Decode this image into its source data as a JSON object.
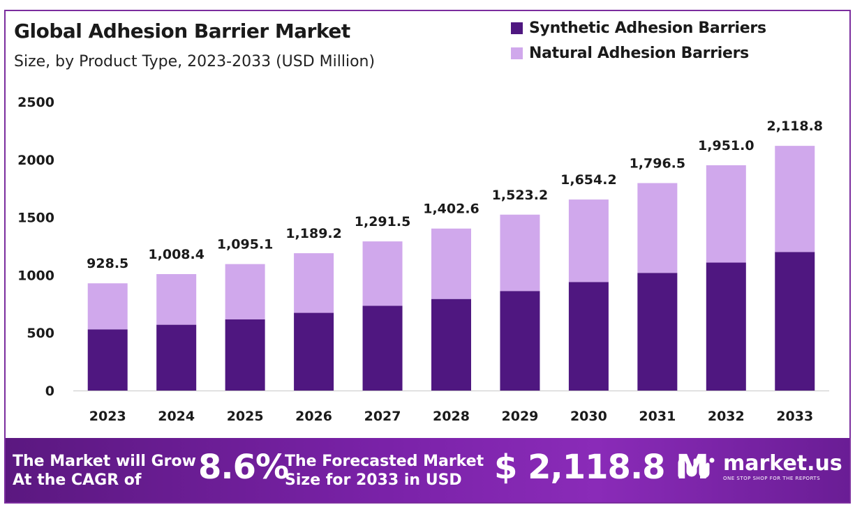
{
  "title": "Global Adhesion Barrier Market",
  "subtitle": "Size, by Product Type, 2023-2033 (USD Million)",
  "colors": {
    "synthetic": "#4f1780",
    "natural": "#d0a8ec",
    "frame": "#7b2d9e"
  },
  "chart_data": {
    "type": "bar",
    "stacked": true,
    "title": "Global Adhesion Barrier Market",
    "subtitle": "Size, by Product Type, 2023-2033 (USD Million)",
    "categories": [
      "2023",
      "2024",
      "2025",
      "2026",
      "2027",
      "2028",
      "2029",
      "2030",
      "2031",
      "2032",
      "2033"
    ],
    "series": [
      {
        "name": "Synthetic Adhesion Barriers",
        "values": [
          530,
          570,
          617,
          673,
          734,
          793,
          862,
          940,
          1019,
          1108,
          1200
        ]
      },
      {
        "name": "Natural Adhesion Barriers",
        "values": [
          398.5,
          438.4,
          478.1,
          516.2,
          557.5,
          609.6,
          661.2,
          714.2,
          777.5,
          843.0,
          918.8
        ]
      }
    ],
    "totals": [
      928.5,
      1008.4,
      1095.1,
      1189.2,
      1291.5,
      1402.6,
      1523.2,
      1654.2,
      1796.5,
      1951.0,
      2118.8
    ],
    "total_labels": [
      "928.5",
      "1,008.4",
      "1,095.1",
      "1,189.2",
      "1,291.5",
      "1,402.6",
      "1,523.2",
      "1,654.2",
      "1,796.5",
      "1,951.0",
      "2,118.8"
    ],
    "yticks": [
      0,
      500,
      1000,
      1500,
      2000,
      2500
    ],
    "ylim": [
      0,
      2500
    ],
    "xlabel": "",
    "ylabel": "",
    "grid": false,
    "legend": "top-right"
  },
  "legend": [
    {
      "label": "Synthetic Adhesion Barriers"
    },
    {
      "label": "Natural Adhesion Barriers"
    }
  ],
  "banner": {
    "cagr_label_line1": "The Market will Grow",
    "cagr_label_line2": "At the CAGR of",
    "cagr_value": "8.6%",
    "forecast_label_line1": "The Forecasted Market",
    "forecast_label_line2": "Size for 2033 in USD",
    "forecast_value": "$ 2,118.8 M",
    "logo_name": "market.us",
    "logo_tagline": "ONE STOP SHOP FOR THE REPORTS"
  }
}
